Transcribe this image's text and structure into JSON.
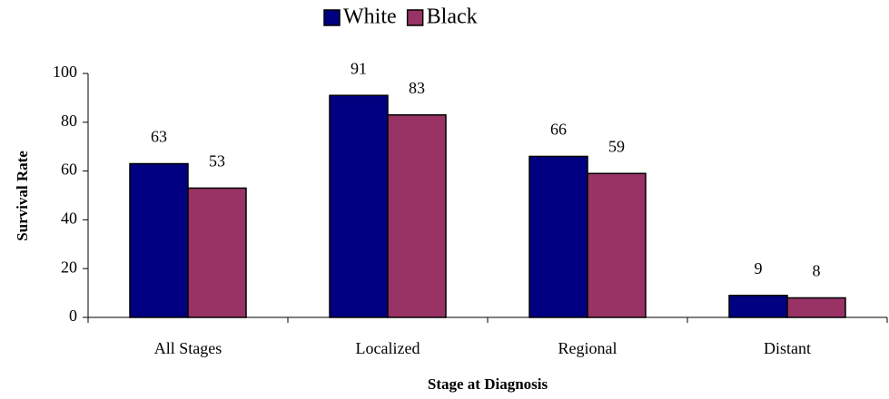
{
  "chart_data": {
    "type": "bar",
    "x_label": "Stage at Diagnosis",
    "y_label": "Survival Rate",
    "categories": [
      "All Stages",
      "Localized",
      "Regional",
      "Distant"
    ],
    "series": [
      {
        "name": "White",
        "color": "#000080",
        "values": [
          63,
          91,
          66,
          9
        ]
      },
      {
        "name": "Black",
        "color": "#993366",
        "values": [
          53,
          83,
          59,
          8
        ]
      }
    ],
    "ylim": [
      0,
      100
    ],
    "yticks": [
      0,
      20,
      40,
      60,
      80,
      100
    ],
    "grid": false,
    "legend": "top",
    "data_labels": true
  }
}
